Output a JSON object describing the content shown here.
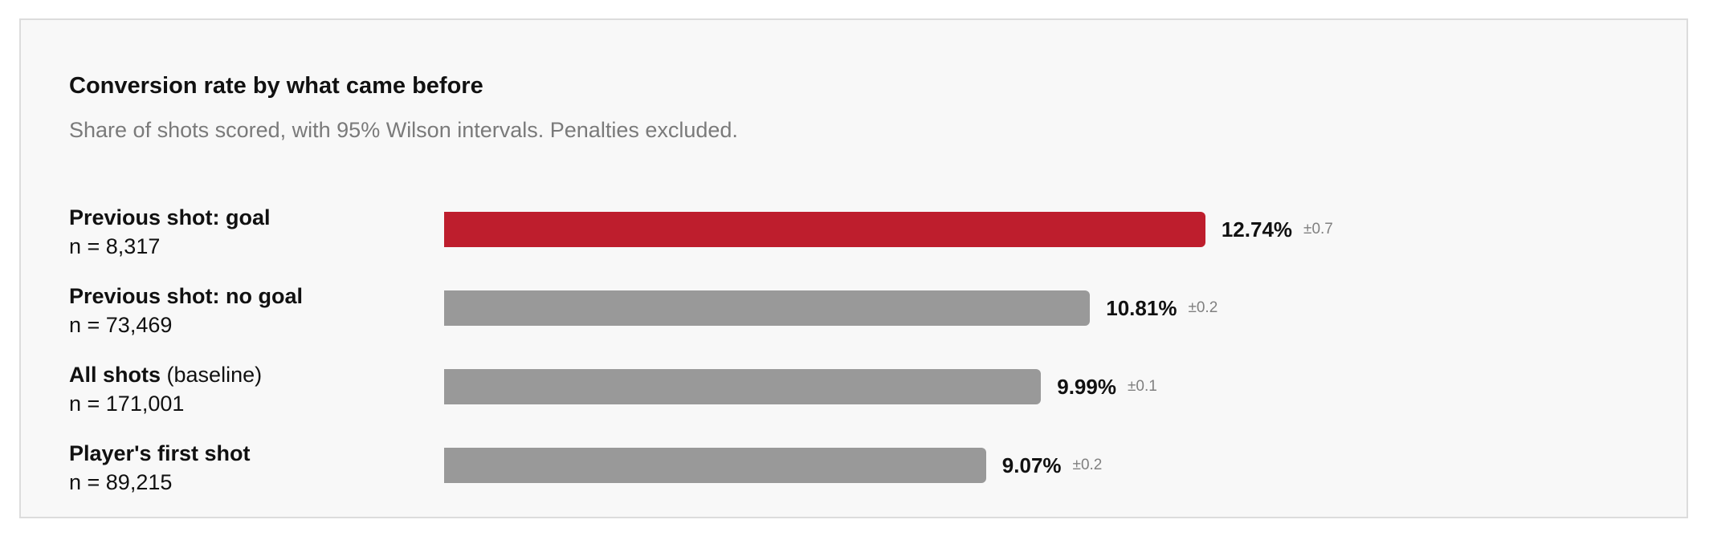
{
  "chart_data": {
    "type": "bar",
    "orientation": "horizontal",
    "title": "Conversion rate by what came before",
    "subtitle": "Share of shots scored, with 95% Wilson intervals. Penalties excluded.",
    "unit": "%",
    "rows": [
      {
        "name": "Previous shot: goal",
        "note": "",
        "n_label": "n = 8,317",
        "value": 12.74,
        "value_label": "12.74%",
        "ci_label": "±0.7",
        "color": "#be1e2d"
      },
      {
        "name": "Previous shot: no goal",
        "note": "",
        "n_label": "n = 73,469",
        "value": 10.81,
        "value_label": "10.81%",
        "ci_label": "±0.2",
        "color": "#999999"
      },
      {
        "name": "All shots",
        "note": "(baseline)",
        "n_label": "n = 171,001",
        "value": 9.99,
        "value_label": "9.99%",
        "ci_label": "±0.1",
        "color": "#999999"
      },
      {
        "name": "Player's first shot",
        "note": "",
        "n_label": "n = 89,215",
        "value": 9.07,
        "value_label": "9.07%",
        "ci_label": "±0.2",
        "color": "#999999"
      }
    ]
  }
}
